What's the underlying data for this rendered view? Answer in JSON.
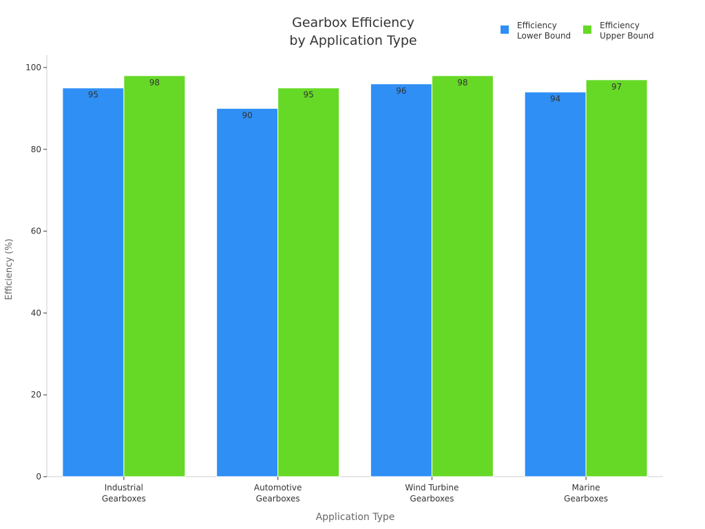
{
  "chart_data": {
    "type": "bar",
    "title_lines": [
      "Gearbox Efficiency",
      "by Application Type"
    ],
    "xlabel": "Application Type",
    "ylabel": "Efficiency (%)",
    "ylim": [
      0,
      103
    ],
    "yticks": [
      0,
      20,
      40,
      60,
      80,
      100
    ],
    "grid": false,
    "legend_position": "top-right",
    "categories": [
      [
        "Industrial",
        "Gearboxes"
      ],
      [
        "Automotive",
        "Gearboxes"
      ],
      [
        "Wind Turbine",
        "Gearboxes"
      ],
      [
        "Marine",
        "Gearboxes"
      ]
    ],
    "series": [
      {
        "name_lines": [
          "Efficiency",
          "Lower Bound"
        ],
        "color": "#2f8ff5",
        "values": [
          95,
          90,
          96,
          94
        ]
      },
      {
        "name_lines": [
          "Efficiency",
          "Upper Bound"
        ],
        "color": "#66d926",
        "values": [
          98,
          95,
          98,
          97
        ]
      }
    ]
  }
}
